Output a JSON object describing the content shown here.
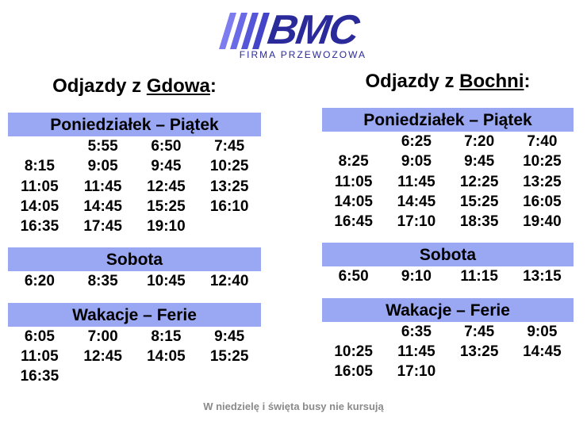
{
  "logo": {
    "text": "BMC",
    "subtitle": "FIRMA PRZEWOZOWA",
    "color": "#2a2a9a"
  },
  "left": {
    "heading_prefix": "Odjazdy z ",
    "heading_place": "Gdowa",
    "heading_suffix": ":",
    "sections": [
      {
        "title": "Poniedziałek – Piątek",
        "rows": [
          [
            "",
            "5:55",
            "6:50",
            "7:45"
          ],
          [
            "8:15",
            "9:05",
            "9:45",
            "10:25"
          ],
          [
            "11:05",
            "11:45",
            "12:45",
            "13:25"
          ],
          [
            "14:05",
            "14:45",
            "15:25",
            "16:10"
          ],
          [
            "16:35",
            "17:45",
            "19:10",
            ""
          ]
        ]
      },
      {
        "title": "Sobota",
        "rows": [
          [
            "6:20",
            "8:35",
            "10:45",
            "12:40"
          ]
        ]
      },
      {
        "title": "Wakacje – Ferie",
        "rows": [
          [
            "6:05",
            "7:00",
            "8:15",
            "9:45"
          ],
          [
            "11:05",
            "12:45",
            "14:05",
            "15:25"
          ],
          [
            "16:35",
            "",
            "",
            ""
          ]
        ]
      }
    ]
  },
  "right": {
    "heading_prefix": "Odjazdy z ",
    "heading_place": "Bochni",
    "heading_suffix": ":",
    "sections": [
      {
        "title": "Poniedziałek – Piątek",
        "rows": [
          [
            "",
            "6:25",
            "7:20",
            "7:40"
          ],
          [
            "8:25",
            "9:05",
            "9:45",
            "10:25"
          ],
          [
            "11:05",
            "11:45",
            "12:25",
            "13:25"
          ],
          [
            "14:05",
            "14:45",
            "15:25",
            "16:05"
          ],
          [
            "16:45",
            "17:10",
            "18:35",
            "19:40"
          ]
        ]
      },
      {
        "title": "Sobota",
        "rows": [
          [
            "6:50",
            "9:10",
            "11:15",
            "13:15"
          ]
        ]
      },
      {
        "title": "Wakacje – Ferie",
        "rows": [
          [
            "",
            "6:35",
            "7:45",
            "9:05"
          ],
          [
            "10:25",
            "11:45",
            "13:25",
            "14:45"
          ],
          [
            "16:05",
            "17:10",
            "",
            ""
          ]
        ]
      }
    ]
  },
  "footer": "W niedzielę i święta busy nie kursują",
  "colors": {
    "band": "#9aa8f4",
    "footer_text": "#8a8a8a"
  }
}
